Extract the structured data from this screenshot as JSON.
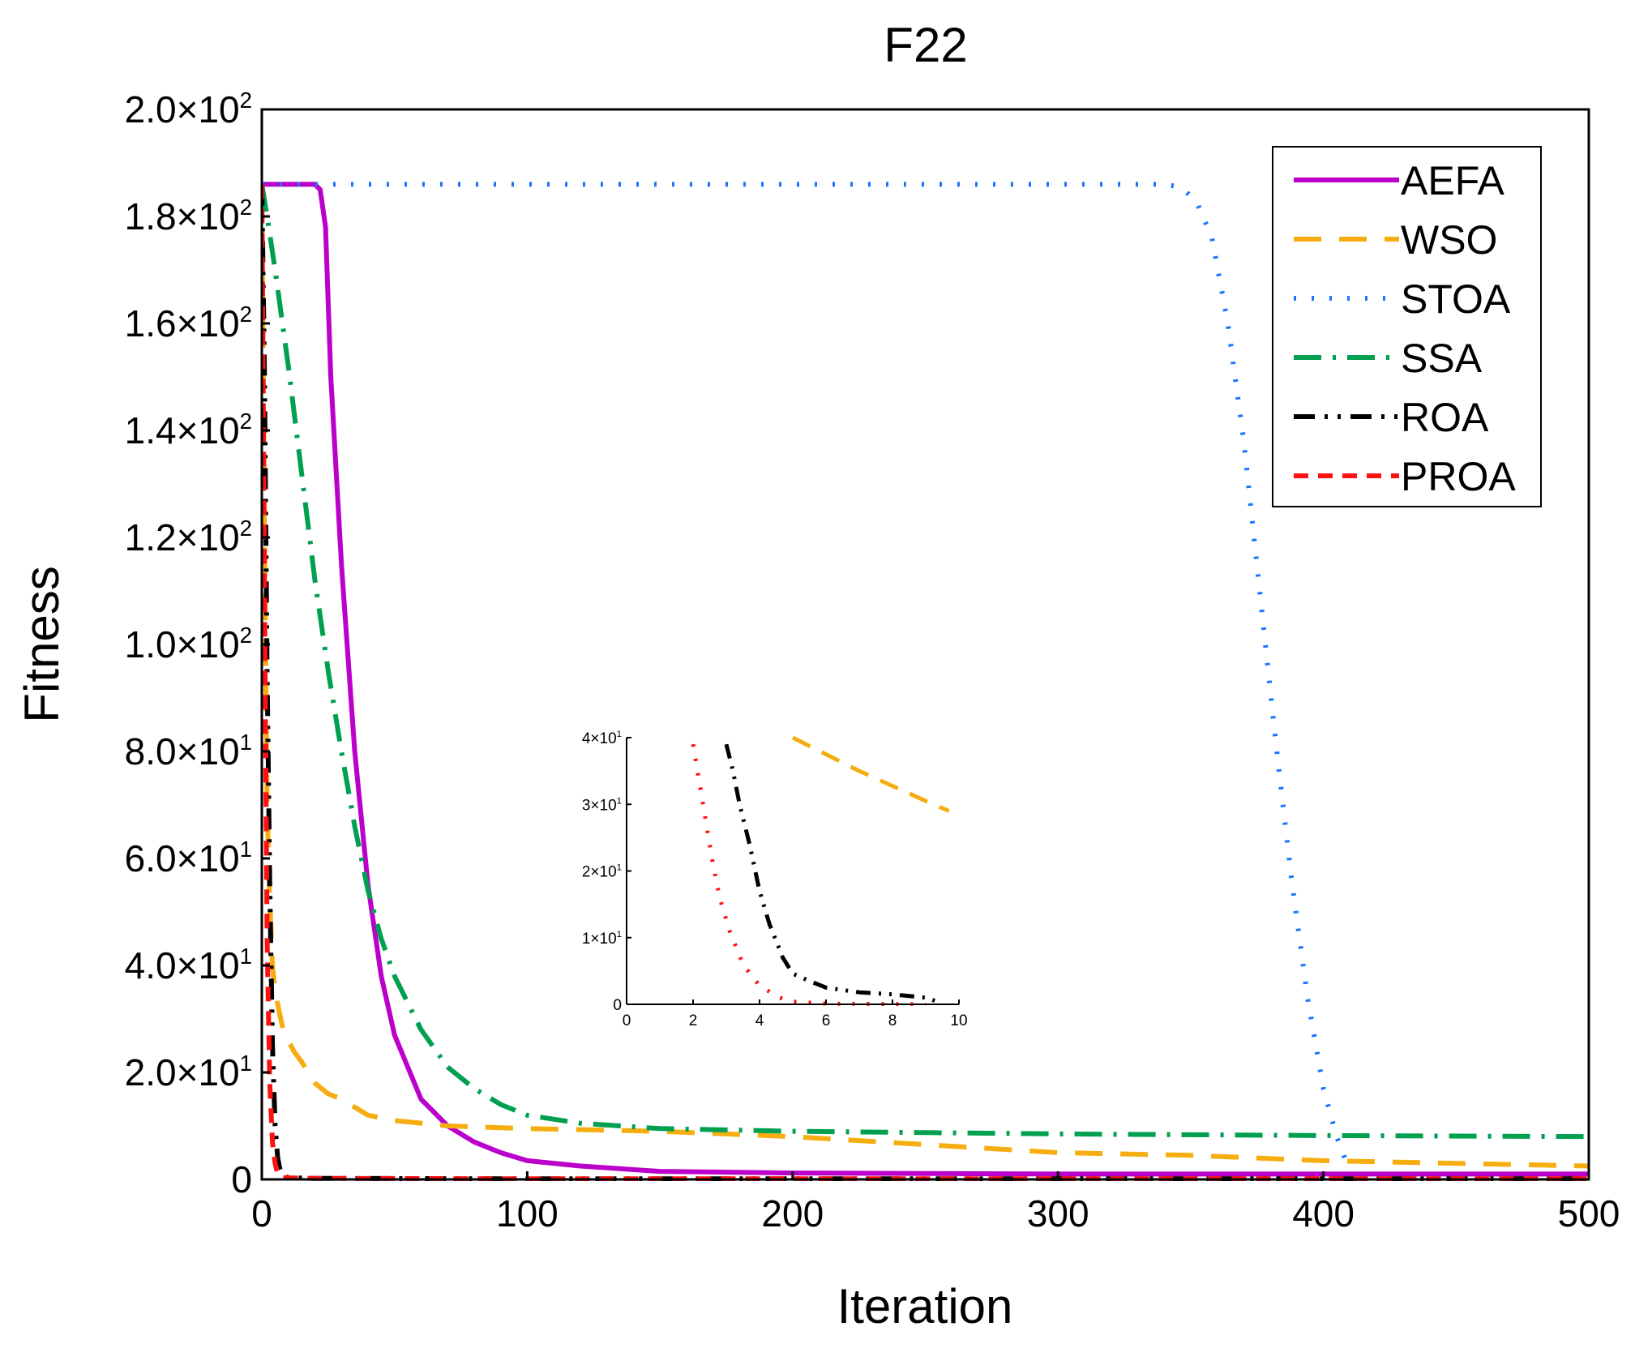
{
  "chart_data": [
    {
      "type": "line",
      "title": "F22",
      "xlabel": "Iteration",
      "ylabel": "Fitness",
      "xlim": [
        0,
        500
      ],
      "ylim": [
        0,
        200
      ],
      "x_ticks": [
        {
          "value": 0,
          "label": "0"
        },
        {
          "value": 100,
          "label": "100"
        },
        {
          "value": 200,
          "label": "200"
        },
        {
          "value": 300,
          "label": "300"
        },
        {
          "value": 400,
          "label": "400"
        },
        {
          "value": 500,
          "label": "500"
        }
      ],
      "y_ticks": [
        {
          "value": 0,
          "mant": "0",
          "exp": ""
        },
        {
          "value": 20,
          "mant": "2.0×10",
          "exp": "1"
        },
        {
          "value": 40,
          "mant": "4.0×10",
          "exp": "1"
        },
        {
          "value": 60,
          "mant": "6.0×10",
          "exp": "1"
        },
        {
          "value": 80,
          "mant": "8.0×10",
          "exp": "1"
        },
        {
          "value": 100,
          "mant": "1.0×10",
          "exp": "2"
        },
        {
          "value": 120,
          "mant": "1.2×10",
          "exp": "2"
        },
        {
          "value": 140,
          "mant": "1.4×10",
          "exp": "2"
        },
        {
          "value": 160,
          "mant": "1.6×10",
          "exp": "2"
        },
        {
          "value": 180,
          "mant": "1.8×10",
          "exp": "2"
        },
        {
          "value": 200,
          "mant": "2.0×10",
          "exp": "2"
        }
      ],
      "grid": false,
      "legend": "top-right",
      "series": [
        {
          "name": "AEFA",
          "color": "#bb00cc",
          "style": "solid",
          "points": [
            [
              0,
              186
            ],
            [
              20,
              186
            ],
            [
              22,
              185
            ],
            [
              24,
              178
            ],
            [
              26,
              150
            ],
            [
              30,
              115
            ],
            [
              35,
              80
            ],
            [
              40,
              55
            ],
            [
              45,
              38
            ],
            [
              50,
              27
            ],
            [
              60,
              15
            ],
            [
              70,
              10
            ],
            [
              80,
              7
            ],
            [
              90,
              5
            ],
            [
              100,
              3.5
            ],
            [
              120,
              2.5
            ],
            [
              150,
              1.5
            ],
            [
              200,
              1.2
            ],
            [
              300,
              1.0
            ],
            [
              400,
              1.0
            ],
            [
              500,
              1.0
            ]
          ]
        },
        {
          "name": "WSO",
          "color": "#f5ad10",
          "style": "dashed",
          "points": [
            [
              0,
              186
            ],
            [
              1,
              120
            ],
            [
              2,
              70
            ],
            [
              3,
              52
            ],
            [
              4,
              40
            ],
            [
              5,
              35
            ],
            [
              8,
              28
            ],
            [
              12,
              24
            ],
            [
              15,
              22
            ],
            [
              20,
              18
            ],
            [
              25,
              16
            ],
            [
              30,
              15
            ],
            [
              40,
              12
            ],
            [
              50,
              11
            ],
            [
              70,
              10
            ],
            [
              100,
              9.5
            ],
            [
              150,
              9
            ],
            [
              200,
              8
            ],
            [
              250,
              6.5
            ],
            [
              300,
              5
            ],
            [
              350,
              4.5
            ],
            [
              400,
              3.5
            ],
            [
              450,
              3
            ],
            [
              500,
              2.5
            ]
          ]
        },
        {
          "name": "STOA",
          "color": "#1a75ff",
          "style": "dotted",
          "points": [
            [
              0,
              186
            ],
            [
              340,
              186
            ],
            [
              346,
              185.5
            ],
            [
              352,
              183
            ],
            [
              358,
              176
            ],
            [
              364,
              160
            ],
            [
              370,
              138
            ],
            [
              376,
              110
            ],
            [
              382,
              82
            ],
            [
              388,
              56
            ],
            [
              394,
              34
            ],
            [
              400,
              17
            ],
            [
              405,
              8
            ],
            [
              408,
              4
            ]
          ]
        },
        {
          "name": "SSA",
          "color": "#00a050",
          "style": "dashdot",
          "points": [
            [
              0,
              186
            ],
            [
              2,
              180
            ],
            [
              5,
              170
            ],
            [
              10,
              152
            ],
            [
              15,
              132
            ],
            [
              20,
              112
            ],
            [
              25,
              95
            ],
            [
              30,
              80
            ],
            [
              35,
              66
            ],
            [
              40,
              54
            ],
            [
              45,
              45
            ],
            [
              50,
              38
            ],
            [
              60,
              28
            ],
            [
              70,
              21
            ],
            [
              80,
              17
            ],
            [
              90,
              14
            ],
            [
              100,
              12
            ],
            [
              120,
              10.5
            ],
            [
              150,
              9.5
            ],
            [
              200,
              9
            ],
            [
              300,
              8.5
            ],
            [
              400,
              8.2
            ],
            [
              500,
              8
            ]
          ]
        },
        {
          "name": "ROA",
          "color": "#000000",
          "style": "dashdotdot",
          "points": [
            [
              0,
              186
            ],
            [
              1,
              150
            ],
            [
              2,
              95
            ],
            [
              3,
              55
            ],
            [
              4,
              25
            ],
            [
              5,
              10
            ],
            [
              6,
              4
            ],
            [
              7,
              1.5
            ],
            [
              8,
              0.8
            ],
            [
              10,
              0.3
            ],
            [
              20,
              0.2
            ],
            [
              100,
              0.1
            ],
            [
              500,
              0.1
            ]
          ]
        },
        {
          "name": "PROA",
          "color": "#ff1010",
          "style": "short-dashed",
          "points": [
            [
              0,
              186
            ],
            [
              1,
              110
            ],
            [
              2,
              45
            ],
            [
              3,
              18
            ],
            [
              4,
              7
            ],
            [
              5,
              3
            ],
            [
              6,
              1
            ],
            [
              8,
              0.3
            ],
            [
              20,
              0.2
            ],
            [
              100,
              0.1
            ],
            [
              500,
              0.1
            ]
          ]
        }
      ]
    },
    {
      "type": "line",
      "title": "",
      "xlim": [
        0,
        10
      ],
      "ylim": [
        0,
        40
      ],
      "x_ticks": [
        {
          "value": 0,
          "label": "0"
        },
        {
          "value": 2,
          "label": "2"
        },
        {
          "value": 4,
          "label": "4"
        },
        {
          "value": 6,
          "label": "6"
        },
        {
          "value": 8,
          "label": "8"
        },
        {
          "value": 10,
          "label": "10"
        }
      ],
      "y_ticks": [
        {
          "value": 0,
          "mant": "0",
          "exp": ""
        },
        {
          "value": 10,
          "mant": "1×10",
          "exp": "1"
        },
        {
          "value": 20,
          "mant": "2×10",
          "exp": "1"
        },
        {
          "value": 30,
          "mant": "3×10",
          "exp": "1"
        },
        {
          "value": 40,
          "mant": "4×10",
          "exp": "1"
        }
      ],
      "series": [
        {
          "name": "WSO",
          "color": "#f5ad10",
          "style": "dashed",
          "points": [
            [
              5,
              40
            ],
            [
              7,
              35
            ],
            [
              9,
              30.5
            ],
            [
              9.7,
              29
            ]
          ]
        },
        {
          "name": "ROA",
          "color": "#000000",
          "style": "dashdotdot",
          "points": [
            [
              3,
              39
            ],
            [
              3.2,
              35
            ],
            [
              3.4,
              30
            ],
            [
              3.7,
              24
            ],
            [
              4,
              17
            ],
            [
              4.3,
              12
            ],
            [
              4.7,
              7
            ],
            [
              5,
              4.6
            ],
            [
              5.5,
              3.5
            ],
            [
              6,
              2.5
            ],
            [
              7,
              1.8
            ],
            [
              8,
              1.5
            ],
            [
              9,
              1
            ],
            [
              9.3,
              0.5
            ]
          ]
        },
        {
          "name": "PROA",
          "color": "#ff1010",
          "style": "dotted",
          "points": [
            [
              2,
              39
            ],
            [
              2.2,
              33
            ],
            [
              2.4,
              27
            ],
            [
              2.6,
              21
            ],
            [
              2.8,
              16
            ],
            [
              3.1,
              11
            ],
            [
              3.5,
              6
            ],
            [
              4,
              2.8
            ],
            [
              4.6,
              1
            ],
            [
              5,
              0.4
            ],
            [
              6,
              0.1
            ],
            [
              9,
              0
            ]
          ]
        }
      ]
    }
  ]
}
